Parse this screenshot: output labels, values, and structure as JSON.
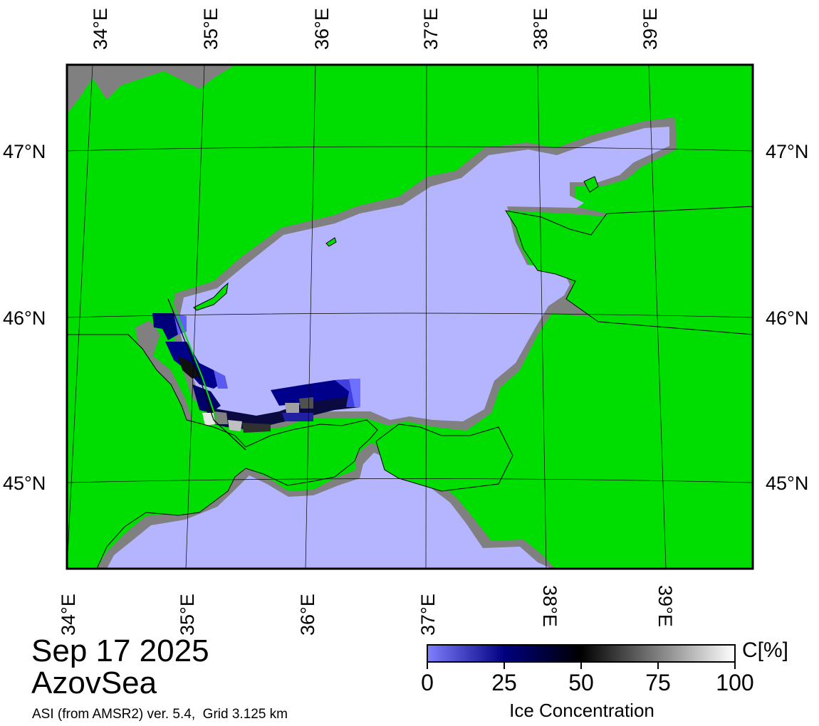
{
  "map": {
    "top_lon_labels": [
      "34°E",
      "35°E",
      "36°E",
      "37°E",
      "38°E",
      "39°E"
    ],
    "bottom_lon_labels": [
      "34°E",
      "35°E",
      "36°E",
      "37°E",
      "38°E",
      "39°E"
    ],
    "left_lat_labels": [
      "47°N",
      "46°N",
      "45°N"
    ],
    "right_lat_labels": [
      "47°N",
      "46°N",
      "45°N"
    ],
    "colors": {
      "land": "#00dd00",
      "open_water": "#b4b4ff",
      "masked_coast": "#808080",
      "graticule": "#000000"
    }
  },
  "caption": {
    "date": "Sep 17 2025",
    "region": "AzovSea",
    "source": "ASI (from AMSR2) ver. 5.4,  Grid 3.125 km"
  },
  "colorbar": {
    "unit": "C[%]",
    "title": "Ice Concentration",
    "tick_labels": [
      "0",
      "25",
      "50",
      "75",
      "100"
    ],
    "range": [
      0,
      100
    ],
    "gradient_stops": [
      {
        "value": 0,
        "color": "#8080ff"
      },
      {
        "value": 25,
        "color": "#000080"
      },
      {
        "value": 50,
        "color": "#000000"
      },
      {
        "value": 100,
        "color": "#ffffff"
      }
    ]
  }
}
